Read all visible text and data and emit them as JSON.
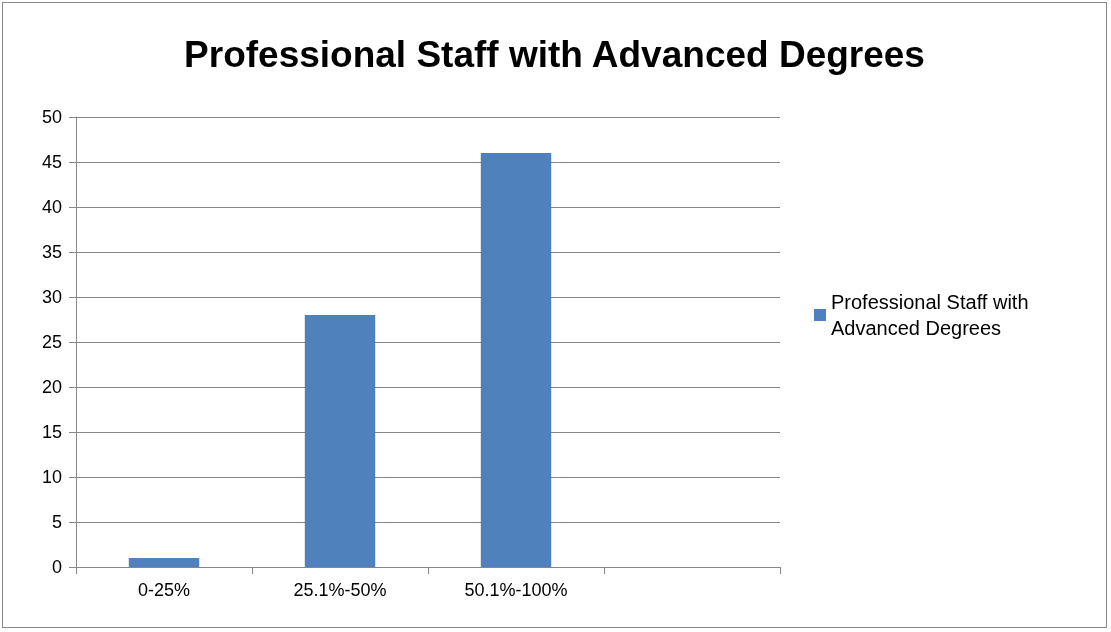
{
  "chart_data": {
    "type": "bar",
    "title": "Professional Staff with Advanced Degrees",
    "categories": [
      "0-25%",
      "25.1%-50%",
      "50.1%-100%",
      null
    ],
    "series": [
      {
        "name": "Professional Staff with Advanced Degrees",
        "color": "#4f81bd",
        "values": [
          1,
          28,
          46,
          null
        ]
      }
    ],
    "ylim": [
      0,
      50
    ],
    "yticks": [
      0,
      5,
      10,
      15,
      20,
      25,
      30,
      35,
      40,
      45,
      50
    ],
    "grid": "y",
    "legend": "right"
  }
}
